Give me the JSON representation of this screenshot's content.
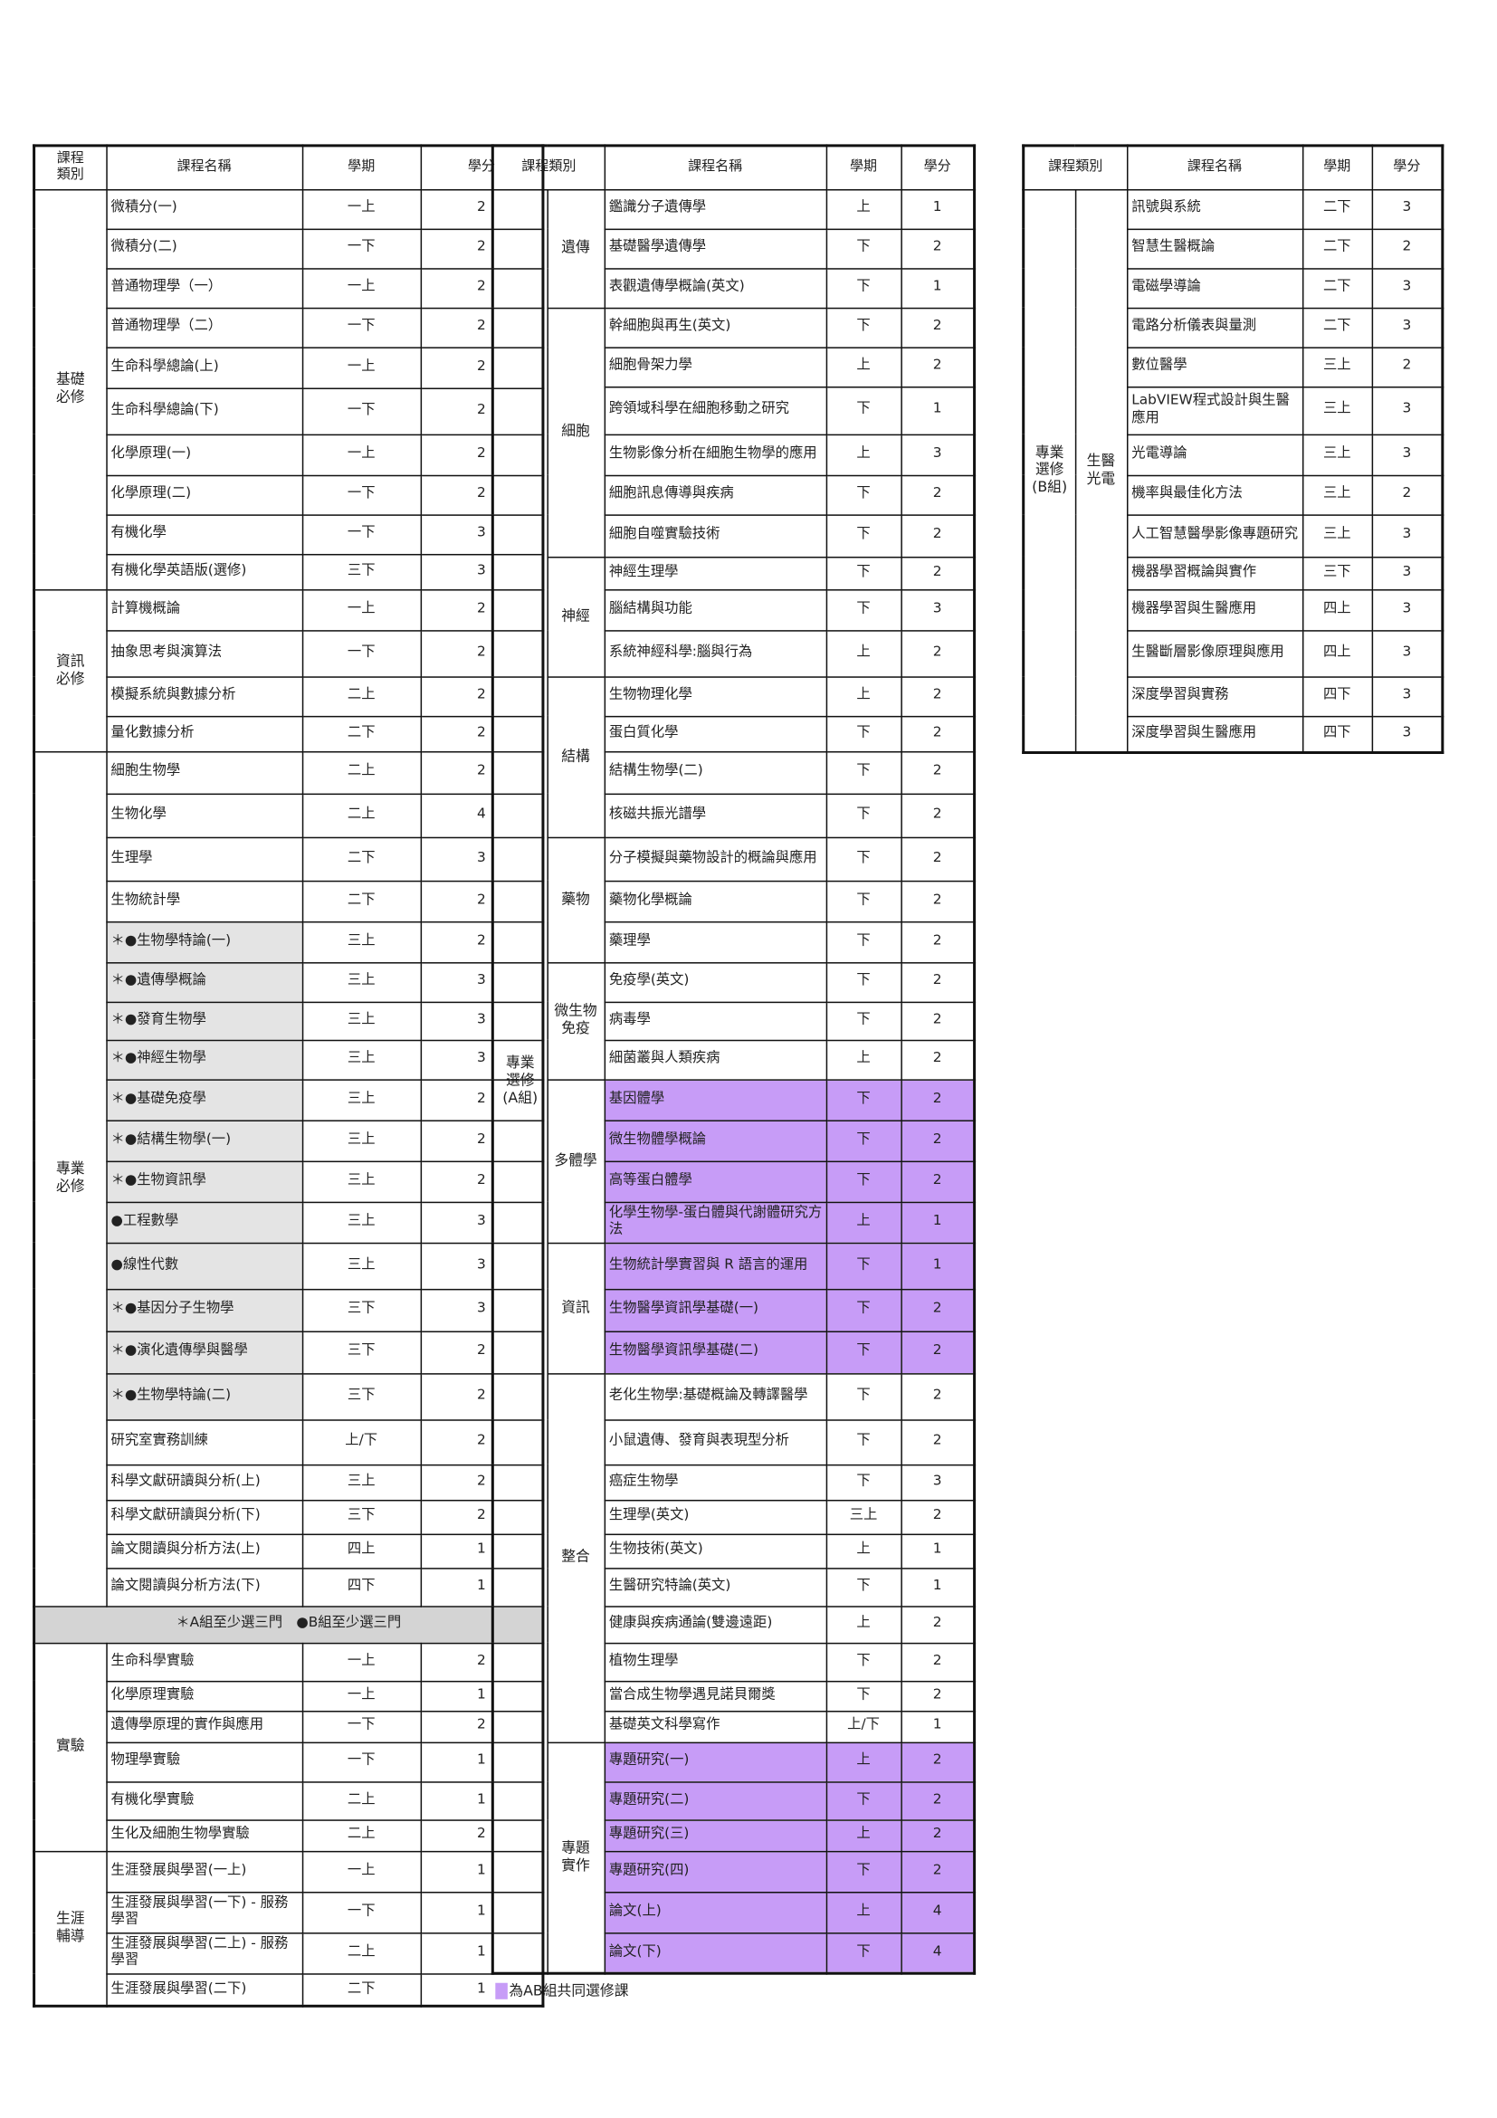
{
  "colors": {
    "ab_shared": "#c79cf7",
    "highlight_gray": "#e4e4e4"
  },
  "table1": {
    "headers": [
      "課程\n類別",
      "課程名稱",
      "學期",
      "學分"
    ],
    "groups": [
      {
        "label": "基礎\n必修",
        "rows": [
          {
            "name": "微積分(一)",
            "term": "一上",
            "credit": "2"
          },
          {
            "name": "微積分(二)",
            "term": "一下",
            "credit": "2"
          },
          {
            "name": "普通物理學（一）",
            "term": "一上",
            "credit": "2"
          },
          {
            "name": "普通物理學（二）",
            "term": "一下",
            "credit": "2"
          },
          {
            "name": "生命科學總論(上)",
            "term": "一上",
            "credit": "2"
          },
          {
            "name": "生命科學總論(下)",
            "term": "一下",
            "credit": "2"
          },
          {
            "name": "化學原理(一)",
            "term": "一上",
            "credit": "2"
          },
          {
            "name": "化學原理(二)",
            "term": "一下",
            "credit": "2"
          },
          {
            "name": "有機化學",
            "term": "一下",
            "credit": "3"
          },
          {
            "name": "有機化學英語版(選修)",
            "term": "三下",
            "credit": "3"
          }
        ]
      },
      {
        "label": "資訊\n必修",
        "rows": [
          {
            "name": "計算機概論",
            "term": "一上",
            "credit": "2"
          },
          {
            "name": "抽象思考與演算法",
            "term": "一下",
            "credit": "2"
          },
          {
            "name": "模擬系統與數據分析",
            "term": "二上",
            "credit": "2"
          },
          {
            "name": "量化數據分析",
            "term": "二下",
            "credit": "2"
          }
        ]
      },
      {
        "label": "專業\n必修",
        "rows": [
          {
            "name": "細胞生物學",
            "term": "二上",
            "credit": "2"
          },
          {
            "name": "生物化學",
            "term": "二上",
            "credit": "4"
          },
          {
            "name": "生理學",
            "term": "二下",
            "credit": "3"
          },
          {
            "name": "生物統計學",
            "term": "二下",
            "credit": "2"
          },
          {
            "name": "＊●生物學特論(一)",
            "term": "三上",
            "credit": "2",
            "shade": "gray"
          },
          {
            "name": "＊●遺傳學概論",
            "term": "三上",
            "credit": "3",
            "shade": "gray"
          },
          {
            "name": "＊●發育生物學",
            "term": "三上",
            "credit": "3",
            "shade": "gray"
          },
          {
            "name": "＊●神經生物學",
            "term": "三上",
            "credit": "3",
            "shade": "gray"
          },
          {
            "name": "＊●基礎免疫學",
            "term": "三上",
            "credit": "2",
            "shade": "gray"
          },
          {
            "name": "＊●結構生物學(一)",
            "term": "三上",
            "credit": "2",
            "shade": "gray"
          },
          {
            "name": "＊●生物資訊學",
            "term": "三上",
            "credit": "2",
            "shade": "gray"
          },
          {
            "name": "  ●工程數學",
            "term": "三上",
            "credit": "3",
            "shade": "gray"
          },
          {
            "name": "  ●線性代數",
            "term": "三上",
            "credit": "3",
            "shade": "gray"
          },
          {
            "name": "＊●基因分子生物學",
            "term": "三下",
            "credit": "3",
            "shade": "gray"
          },
          {
            "name": "＊●演化遺傳學與醫學",
            "term": "三下",
            "credit": "2",
            "shade": "gray"
          },
          {
            "name": "＊●生物學特論(二)",
            "term": "三下",
            "credit": "2",
            "shade": "gray"
          },
          {
            "name": "研究室實務訓練",
            "term": "上/下",
            "credit": "2"
          },
          {
            "name": "科學文獻研讀與分析(上)",
            "term": "三上",
            "credit": "2"
          },
          {
            "name": "科學文獻研讀與分析(下)",
            "term": "三下",
            "credit": "2"
          },
          {
            "name": "論文閱讀與分析方法(上)",
            "term": "四上",
            "credit": "1"
          },
          {
            "name": "論文閱讀與分析方法(下)",
            "term": "四下",
            "credit": "1"
          }
        ]
      },
      {
        "note": "＊A組至少選三門　●B組至少選三門"
      },
      {
        "label": "實驗",
        "rows": [
          {
            "name": "生命科學實驗",
            "term": "一上",
            "credit": "2"
          },
          {
            "name": "化學原理實驗",
            "term": "一上",
            "credit": "1"
          },
          {
            "name": "遺傳學原理的實作與應用",
            "term": "一下",
            "credit": "2"
          },
          {
            "name": "物理學實驗",
            "term": "一下",
            "credit": "1"
          },
          {
            "name": "有機化學實驗",
            "term": "二上",
            "credit": "1"
          },
          {
            "name": "生化及細胞生物學實驗",
            "term": "二上",
            "credit": "2"
          }
        ]
      },
      {
        "label": "生涯\n輔導",
        "rows": [
          {
            "name": "生涯發展與學習(一上)",
            "term": "一上",
            "credit": "1"
          },
          {
            "name": "生涯發展與學習(一下) - 服務學習",
            "term": "一下",
            "credit": "1"
          },
          {
            "name": "生涯發展與學習(二上) - 服務學習",
            "term": "二上",
            "credit": "1"
          },
          {
            "name": "生涯發展與學習(二下)",
            "term": "二下",
            "credit": "1"
          }
        ]
      }
    ]
  },
  "table2": {
    "headers": [
      "課程類別",
      "課程名稱",
      "學期",
      "學分"
    ],
    "label": "專業\n選修\n(A組)",
    "subgroups": [
      {
        "label": "遺傳",
        "rows": [
          {
            "name": "鑑識分子遺傳學",
            "term": "上",
            "credit": "1"
          },
          {
            "name": "基礎醫學遺傳學",
            "term": "下",
            "credit": "2"
          },
          {
            "name": "表觀遺傳學概論(英文)",
            "term": "下",
            "credit": "1"
          }
        ]
      },
      {
        "label": "細胞",
        "rows": [
          {
            "name": "幹細胞與再生(英文)",
            "term": "下",
            "credit": "2"
          },
          {
            "name": "細胞骨架力學",
            "term": "上",
            "credit": "2"
          },
          {
            "name": "跨領域科學在細胞移動之研究",
            "term": "下",
            "credit": "1"
          },
          {
            "name": "生物影像分析在細胞生物學的應用",
            "term": "上",
            "credit": "3"
          },
          {
            "name": "細胞訊息傳導與疾病",
            "term": "下",
            "credit": "2"
          },
          {
            "name": "細胞自噬實驗技術",
            "term": "下",
            "credit": "2"
          }
        ]
      },
      {
        "label": "神經",
        "rows": [
          {
            "name": "神經生理學",
            "term": "下",
            "credit": "2"
          },
          {
            "name": "腦結構與功能",
            "term": "下",
            "credit": "3"
          },
          {
            "name": "系統神經科學:腦與行為",
            "term": "上",
            "credit": "2"
          }
        ]
      },
      {
        "label": "結構",
        "rows": [
          {
            "name": "生物物理化學",
            "term": "上",
            "credit": "2"
          },
          {
            "name": "蛋白質化學",
            "term": "下",
            "credit": "2"
          },
          {
            "name": "結構生物學(二)",
            "term": "下",
            "credit": "2"
          },
          {
            "name": "核磁共振光譜學",
            "term": "下",
            "credit": "2"
          }
        ]
      },
      {
        "label": "藥物",
        "rows": [
          {
            "name": "分子模擬與藥物設計的概論與應用",
            "term": "下",
            "credit": "2"
          },
          {
            "name": "藥物化學概論",
            "term": "下",
            "credit": "2"
          },
          {
            "name": "藥理學",
            "term": "下",
            "credit": "2"
          }
        ]
      },
      {
        "label": "微生物\n免疫",
        "rows": [
          {
            "name": "免疫學(英文)",
            "term": "下",
            "credit": "2"
          },
          {
            "name": "病毒學",
            "term": "下",
            "credit": "2"
          },
          {
            "name": "細菌叢與人類疾病",
            "term": "上",
            "credit": "2"
          }
        ]
      },
      {
        "label": "多體學",
        "rows": [
          {
            "name": "基因體學",
            "term": "下",
            "credit": "2",
            "shade": "purple"
          },
          {
            "name": "微生物體學概論",
            "term": "下",
            "credit": "2",
            "shade": "purple"
          },
          {
            "name": "高等蛋白體學",
            "term": "下",
            "credit": "2",
            "shade": "purple"
          },
          {
            "name": "化學生物學-蛋白體與代謝體研究方法",
            "term": "上",
            "credit": "1",
            "shade": "purple"
          }
        ]
      },
      {
        "label": "資訊",
        "rows": [
          {
            "name": "生物統計學實習與 R 語言的運用",
            "term": "下",
            "credit": "1",
            "shade": "purple"
          },
          {
            "name": "生物醫學資訊學基礎(一)",
            "term": "下",
            "credit": "2",
            "shade": "purple"
          },
          {
            "name": "生物醫學資訊學基礎(二)",
            "term": "下",
            "credit": "2",
            "shade": "purple"
          }
        ]
      },
      {
        "label": "整合",
        "rows": [
          {
            "name": "老化生物學:基礎概論及轉譯醫學",
            "term": "下",
            "credit": "2"
          },
          {
            "name": "小鼠遺傳、發育與表現型分析",
            "term": "下",
            "credit": "2"
          },
          {
            "name": "癌症生物學",
            "term": "下",
            "credit": "3"
          },
          {
            "name": "生理學(英文)",
            "term": "三上",
            "credit": "2"
          },
          {
            "name": "生物技術(英文)",
            "term": "上",
            "credit": "1"
          },
          {
            "name": "生醫研究特論(英文)",
            "term": "下",
            "credit": "1"
          },
          {
            "name": "健康與疾病通論(雙邊遠距)",
            "term": "上",
            "credit": "2"
          },
          {
            "name": "植物生理學",
            "term": "下",
            "credit": "2"
          },
          {
            "name": "當合成生物學遇見諾貝爾獎",
            "term": "下",
            "credit": "2"
          },
          {
            "name": "基礎英文科學寫作",
            "term": "上/下",
            "credit": "1"
          }
        ]
      },
      {
        "label": "專題\n實作",
        "rows": [
          {
            "name": "專題研究(一)",
            "term": "上",
            "credit": "2",
            "shade": "purple"
          },
          {
            "name": "專題研究(二)",
            "term": "下",
            "credit": "2",
            "shade": "purple"
          },
          {
            "name": "專題研究(三)",
            "term": "上",
            "credit": "2",
            "shade": "purple"
          },
          {
            "name": "專題研究(四)",
            "term": "下",
            "credit": "2",
            "shade": "purple"
          },
          {
            "name": "論文(上)",
            "term": "上",
            "credit": "4",
            "shade": "purple"
          },
          {
            "name": "論文(下)",
            "term": "下",
            "credit": "4",
            "shade": "purple"
          }
        ]
      }
    ]
  },
  "table3": {
    "headers": [
      "課程類別",
      "課程名稱",
      "學期",
      "學分"
    ],
    "label": "專業\n選修\n(B組)",
    "subgroups": [
      {
        "label": "生醫\n光電",
        "rows": [
          {
            "name": "訊號與系統",
            "term": "二下",
            "credit": "3"
          },
          {
            "name": "智慧生醫概論",
            "term": "二下",
            "credit": "2"
          },
          {
            "name": "電磁學導論",
            "term": "二下",
            "credit": "3"
          },
          {
            "name": "電路分析儀表與量測",
            "term": "二下",
            "credit": "3"
          },
          {
            "name": "數位醫學",
            "term": "三上",
            "credit": "2"
          },
          {
            "name": "LabVIEW程式設計與生醫應用",
            "term": "三上",
            "credit": "3"
          },
          {
            "name": "光電導論",
            "term": "三上",
            "credit": "3"
          },
          {
            "name": "機率與最佳化方法",
            "term": "三上",
            "credit": "2"
          },
          {
            "name": "人工智慧醫學影像專題研究",
            "term": "三上",
            "credit": "3"
          },
          {
            "name": "機器學習概論與實作",
            "term": "三下",
            "credit": "3"
          },
          {
            "name": "機器學習與生醫應用",
            "term": "四上",
            "credit": "3"
          },
          {
            "name": "生醫斷層影像原理與應用",
            "term": "四上",
            "credit": "3"
          },
          {
            "name": "深度學習與實務",
            "term": "四下",
            "credit": "3"
          },
          {
            "name": "深度學習與生醫應用",
            "term": "四下",
            "credit": "3"
          }
        ]
      }
    ]
  },
  "legend": {
    "text": "為AB組共同選修課"
  }
}
